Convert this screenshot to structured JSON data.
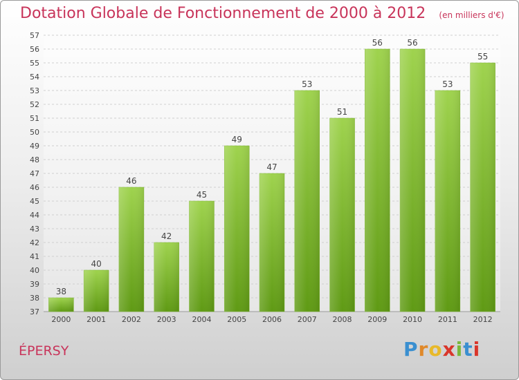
{
  "header": {
    "title": "Dotation Globale de Fonctionnement de 2000 à 2012",
    "unit": "(en milliers d'€)"
  },
  "footer": {
    "commune": "ÉPERSY",
    "brand": "Proxiti"
  },
  "colors": {
    "accent": "#c8345a",
    "bar_top": "#9fd34e",
    "bar_bottom": "#5f9a14"
  },
  "chart_data": {
    "type": "bar",
    "categories": [
      "2000",
      "2001",
      "2002",
      "2003",
      "2004",
      "2005",
      "2006",
      "2007",
      "2008",
      "2009",
      "2010",
      "2011",
      "2012"
    ],
    "values": [
      38,
      40,
      46,
      42,
      45,
      49,
      47,
      53,
      51,
      56,
      56,
      53,
      55
    ],
    "title": "Dotation Globale de Fonctionnement de 2000 à 2012",
    "subtitle": "(en milliers d'€)",
    "xlabel": "",
    "ylabel": "",
    "ylim": [
      37,
      57
    ],
    "yticks": [
      37,
      38,
      39,
      40,
      41,
      42,
      43,
      44,
      45,
      46,
      47,
      48,
      49,
      50,
      51,
      52,
      53,
      54,
      55,
      56,
      57
    ],
    "grid": true,
    "data_labels": true
  }
}
